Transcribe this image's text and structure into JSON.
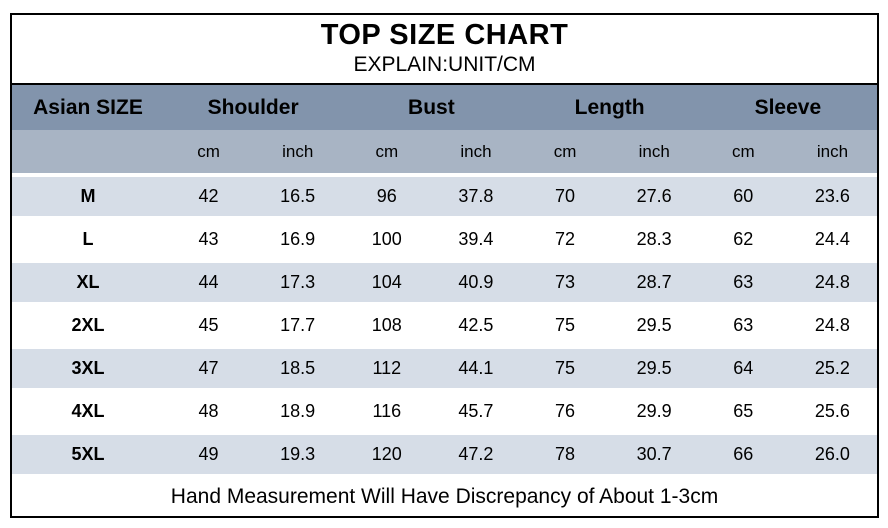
{
  "chart_data": {
    "type": "table",
    "title": "TOP SIZE CHART",
    "subtitle": "EXPLAIN:UNIT/CM",
    "size_header": "Asian SIZE",
    "groups": [
      "Shoulder",
      "Bust",
      "Length",
      "Sleeve"
    ],
    "units": [
      "cm",
      "inch",
      "cm",
      "inch",
      "cm",
      "inch",
      "cm",
      "inch"
    ],
    "rows": [
      {
        "size": "M",
        "values": [
          "42",
          "16.5",
          "96",
          "37.8",
          "70",
          "27.6",
          "60",
          "23.6"
        ]
      },
      {
        "size": "L",
        "values": [
          "43",
          "16.9",
          "100",
          "39.4",
          "72",
          "28.3",
          "62",
          "24.4"
        ]
      },
      {
        "size": "XL",
        "values": [
          "44",
          "17.3",
          "104",
          "40.9",
          "73",
          "28.7",
          "63",
          "24.8"
        ]
      },
      {
        "size": "2XL",
        "values": [
          "45",
          "17.7",
          "108",
          "42.5",
          "75",
          "29.5",
          "63",
          "24.8"
        ]
      },
      {
        "size": "3XL",
        "values": [
          "47",
          "18.5",
          "112",
          "44.1",
          "75",
          "29.5",
          "64",
          "25.2"
        ]
      },
      {
        "size": "4XL",
        "values": [
          "48",
          "18.9",
          "116",
          "45.7",
          "76",
          "29.9",
          "65",
          "25.6"
        ]
      },
      {
        "size": "5XL",
        "values": [
          "49",
          "19.3",
          "120",
          "47.2",
          "78",
          "30.7",
          "66",
          "26.0"
        ]
      }
    ],
    "footer": "Hand Measurement Will Have Discrepancy of About 1-3cm",
    "layout_hints": {
      "header_bg": "#8294ac",
      "subheader_bg": "#a8b4c4",
      "stripe_bg": "#d6dde7",
      "border_color": "#000000",
      "text_color": "#000000"
    }
  }
}
